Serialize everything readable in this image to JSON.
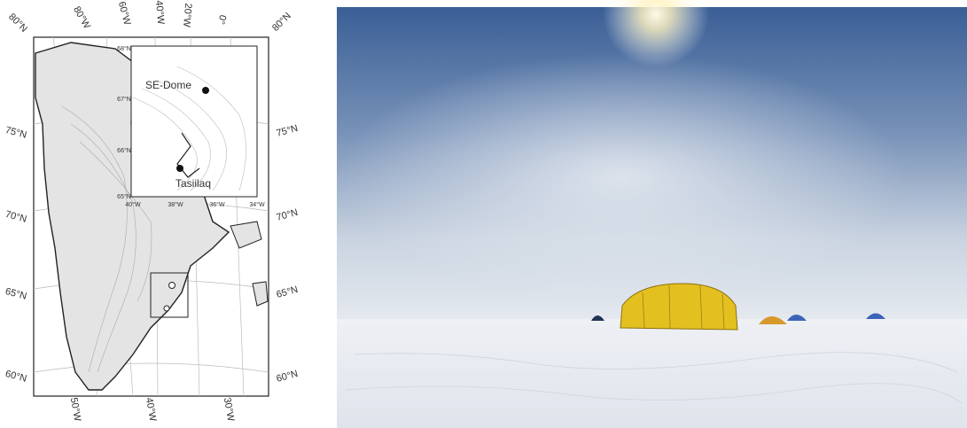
{
  "map": {
    "top_labels": [
      "80°N",
      "80°W",
      "60°W",
      "40°W",
      "20°W",
      "0°",
      "80°N"
    ],
    "left_labels": [
      "75°N",
      "70°N",
      "65°N",
      "60°N"
    ],
    "right_labels": [
      "75°N",
      "70°N",
      "65°N",
      "60°N"
    ],
    "bottom_labels": [
      "50°W",
      "40°W",
      "30°W"
    ],
    "inset": {
      "lat_labels": [
        "68°N",
        "67°N",
        "66°N",
        "65°N"
      ],
      "lon_labels": [
        "40°W",
        "38°W",
        "36°W",
        "34°W"
      ],
      "places": [
        "SE-Dome",
        "Tasiilaq"
      ]
    }
  }
}
